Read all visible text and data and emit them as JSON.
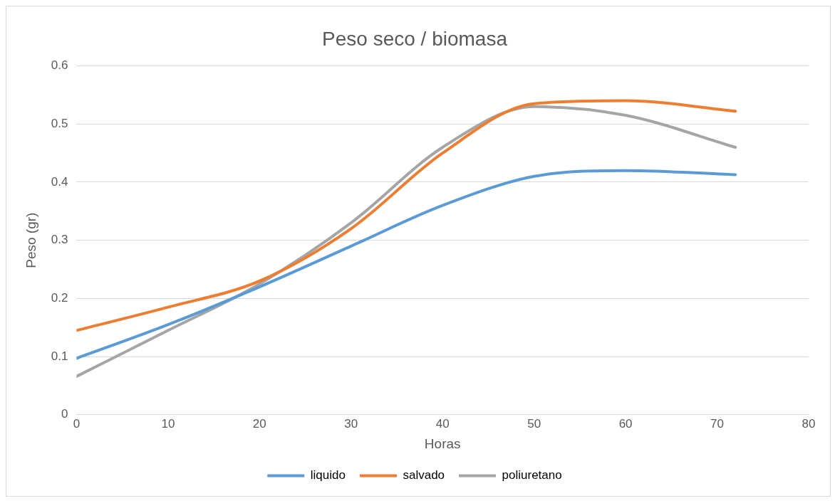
{
  "chart_data": {
    "type": "line",
    "title": "Peso seco / biomasa",
    "xlabel": "Horas",
    "ylabel": "Peso (gr)",
    "x": [
      0,
      10,
      20,
      30,
      40,
      50,
      60,
      72
    ],
    "series": [
      {
        "name": "liquido",
        "color": "#5b9bd5",
        "values": [
          0.097,
          0.155,
          0.22,
          0.29,
          0.36,
          0.41,
          0.42,
          0.413
        ]
      },
      {
        "name": "salvado",
        "color": "#ed7d31",
        "values": [
          0.145,
          0.185,
          0.23,
          0.32,
          0.45,
          0.535,
          0.54,
          0.522
        ]
      },
      {
        "name": "poliuretano",
        "color": "#a5a5a5",
        "values": [
          0.066,
          0.145,
          0.225,
          0.33,
          0.46,
          0.53,
          0.515,
          0.46
        ]
      }
    ],
    "xlim": [
      0,
      80
    ],
    "xticks": [
      0,
      10,
      20,
      30,
      40,
      50,
      60,
      70,
      80
    ],
    "ylim": [
      0,
      0.6
    ],
    "yticks": [
      0,
      0.1,
      0.2,
      0.3,
      0.4,
      0.5,
      0.6
    ],
    "grid": "y",
    "legend": "bottom",
    "marker": "none",
    "line_style": "solid"
  }
}
